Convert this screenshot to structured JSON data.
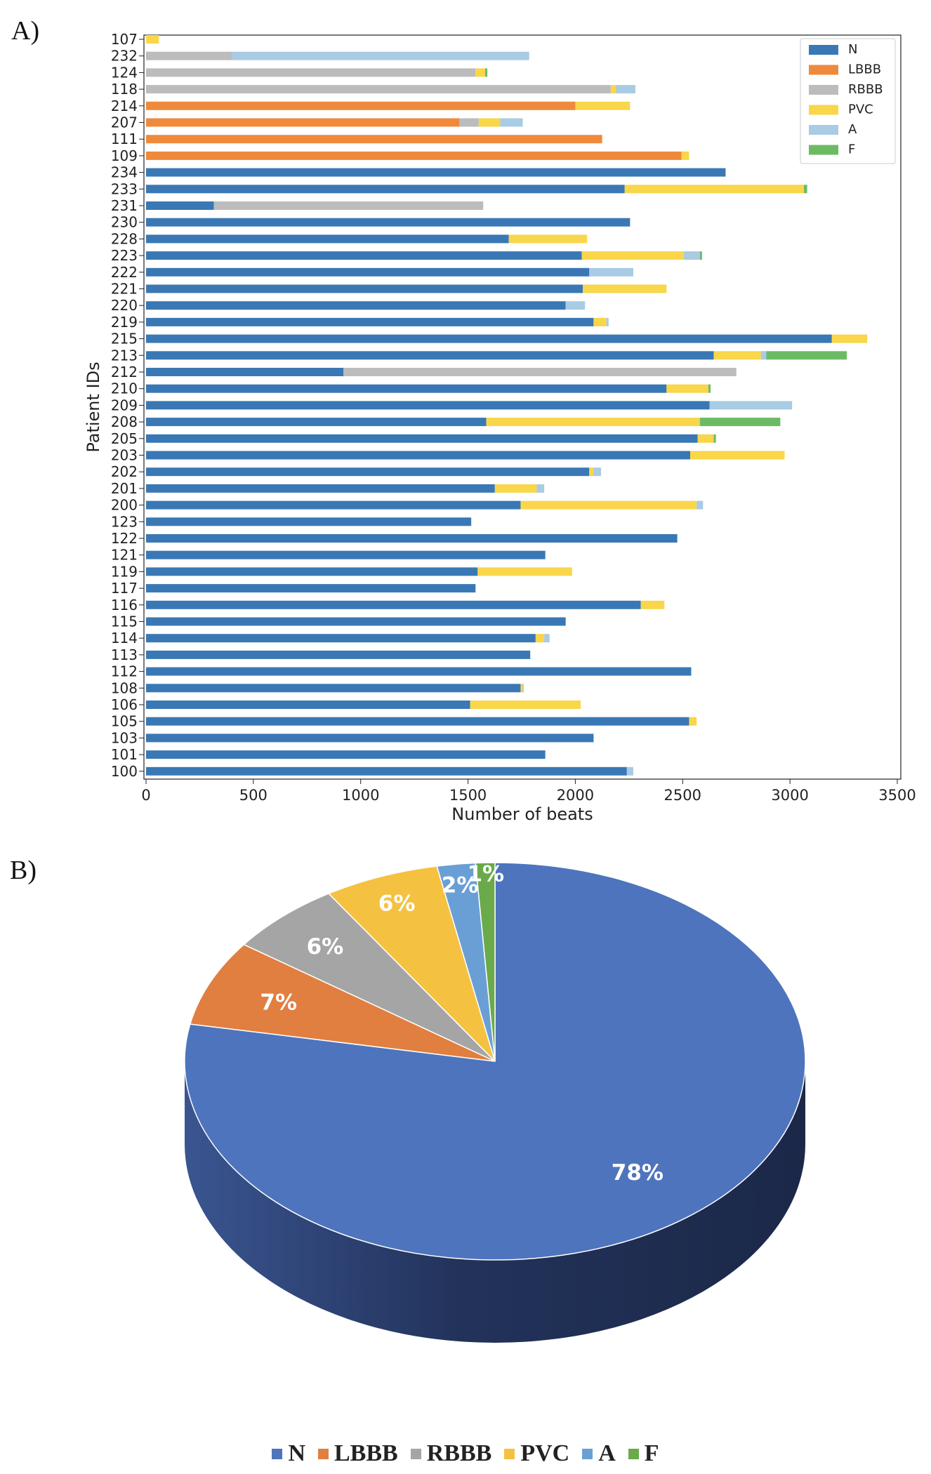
{
  "panel_labels": {
    "a": "A)",
    "b": "B)"
  },
  "colors": {
    "N": "#3a78b5",
    "LBBB": "#ef8a3c",
    "RBBB": "#bcbcbc",
    "PVC": "#f9d64a",
    "A": "#a9cbe4",
    "F": "#6cbb64"
  },
  "pie_colors": {
    "N": "#4e74bd",
    "LBBB": "#e07f40",
    "RBBB": "#a5a5a5",
    "PVC": "#f5c140",
    "A": "#6a9fd6",
    "F": "#6aaa4a",
    "N_side": "#26375f"
  },
  "chart_data": [
    {
      "type": "bar",
      "orientation": "horizontal",
      "stacked": true,
      "title": "",
      "xlabel": "Number of beats",
      "ylabel": "Patient IDs",
      "xlim": [
        0,
        3600
      ],
      "xticks": [
        0,
        500,
        1000,
        1500,
        2000,
        2500,
        3000,
        3500
      ],
      "legend_position": "top-right",
      "legend": [
        "N",
        "LBBB",
        "RBBB",
        "PVC",
        "A",
        "F"
      ],
      "categories": [
        "107",
        "232",
        "124",
        "118",
        "214",
        "207",
        "111",
        "109",
        "234",
        "233",
        "231",
        "230",
        "228",
        "223",
        "222",
        "221",
        "220",
        "219",
        "215",
        "213",
        "212",
        "210",
        "209",
        "208",
        "205",
        "203",
        "202",
        "201",
        "200",
        "123",
        "122",
        "121",
        "119",
        "117",
        "116",
        "115",
        "114",
        "113",
        "112",
        "108",
        "106",
        "105",
        "103",
        "101",
        "100"
      ],
      "series": [
        {
          "name": "N",
          "values": [
            0,
            0,
            0,
            0,
            0,
            0,
            0,
            0,
            2700,
            2230,
            316,
            2255,
            1690,
            2030,
            2065,
            2035,
            1955,
            2085,
            3195,
            2645,
            920,
            2425,
            2625,
            1585,
            2570,
            2535,
            2065,
            1625,
            1745,
            1515,
            2475,
            1860,
            1545,
            1535,
            2305,
            1955,
            1815,
            1790,
            2540,
            1745,
            1510,
            2530,
            2085,
            1860,
            2240
          ]
        },
        {
          "name": "LBBB",
          "values": [
            0,
            0,
            0,
            0,
            2000,
            1460,
            2125,
            2495,
            0,
            0,
            0,
            0,
            0,
            0,
            0,
            0,
            0,
            0,
            0,
            0,
            0,
            0,
            0,
            0,
            0,
            0,
            0,
            0,
            0,
            0,
            0,
            0,
            0,
            0,
            0,
            0,
            0,
            0,
            0,
            0,
            0,
            0,
            0,
            0,
            0
          ]
        },
        {
          "name": "RBBB",
          "values": [
            0,
            400,
            1535,
            2165,
            0,
            90,
            0,
            0,
            0,
            0,
            1255,
            0,
            0,
            0,
            0,
            0,
            0,
            0,
            0,
            0,
            1830,
            0,
            0,
            0,
            0,
            0,
            0,
            0,
            0,
            0,
            0,
            0,
            0,
            0,
            0,
            0,
            0,
            0,
            0,
            0,
            0,
            0,
            0,
            0,
            0
          ]
        },
        {
          "name": "PVC",
          "values": [
            60,
            0,
            45,
            25,
            255,
            100,
            0,
            35,
            0,
            835,
            0,
            0,
            365,
            475,
            0,
            390,
            0,
            60,
            165,
            220,
            0,
            195,
            0,
            995,
            75,
            440,
            20,
            195,
            820,
            0,
            0,
            0,
            440,
            0,
            110,
            0,
            40,
            0,
            0,
            10,
            515,
            35,
            0,
            0,
            0
          ]
        },
        {
          "name": "A",
          "values": [
            0,
            1385,
            0,
            90,
            0,
            105,
            0,
            0,
            0,
            0,
            0,
            0,
            0,
            75,
            205,
            0,
            90,
            10,
            0,
            25,
            0,
            0,
            385,
            0,
            0,
            0,
            35,
            35,
            30,
            0,
            0,
            0,
            0,
            0,
            0,
            0,
            25,
            0,
            0,
            5,
            0,
            0,
            0,
            0,
            30
          ]
        },
        {
          "name": "F",
          "values": [
            0,
            0,
            10,
            0,
            0,
            0,
            0,
            0,
            0,
            15,
            0,
            0,
            0,
            10,
            0,
            0,
            0,
            0,
            0,
            375,
            0,
            10,
            0,
            375,
            10,
            0,
            0,
            0,
            0,
            0,
            0,
            0,
            0,
            0,
            0,
            0,
            0,
            0,
            0,
            0,
            0,
            0,
            0,
            0,
            0
          ]
        }
      ]
    },
    {
      "type": "pie",
      "style": "3d",
      "categories": [
        "N",
        "LBBB",
        "RBBB",
        "PVC",
        "A",
        "F"
      ],
      "values": [
        78,
        7,
        6,
        6,
        2,
        1
      ],
      "labels": [
        "78%",
        "7%",
        "6%",
        "6%",
        "2%",
        "1%"
      ],
      "legend_position": "bottom"
    }
  ]
}
